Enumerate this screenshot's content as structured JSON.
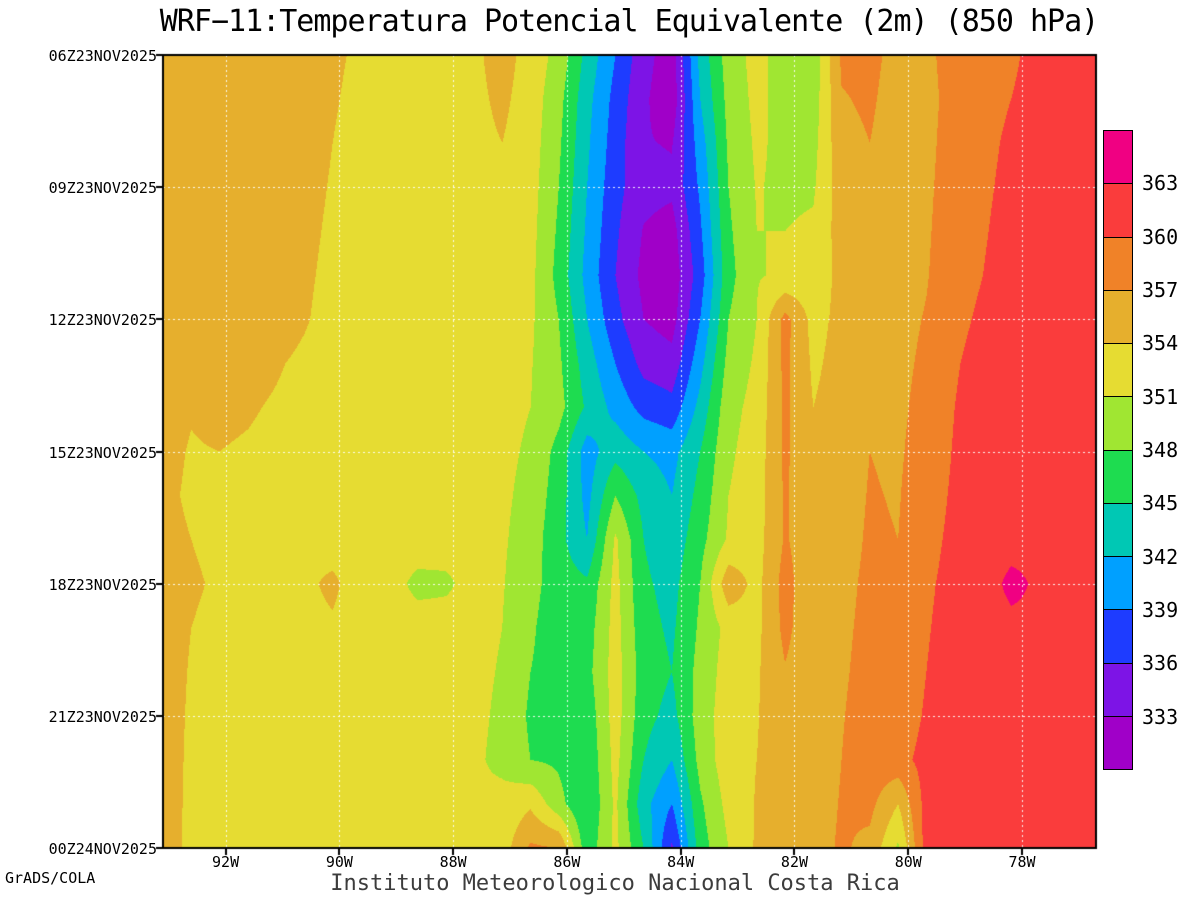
{
  "page": {
    "title": "WRF−11:Temperatura Potencial Equivalente (2m) (850 hPa)",
    "credit": "GrADS/COLA",
    "caption": "Instituto Meteorologico Nacional Costa Rica"
  },
  "chart_data": {
    "type": "heatmap",
    "title": "WRF−11:Temperatura Potencial Equivalente (2m) (850 hPa)",
    "x_axis": "longitude",
    "y_axis": "time",
    "legend_position": "right",
    "grid_lines": "dotted-white",
    "x_ticks": [
      {
        "label": "92W",
        "lon": -92
      },
      {
        "label": "90W",
        "lon": -90
      },
      {
        "label": "88W",
        "lon": -88
      },
      {
        "label": "86W",
        "lon": -86
      },
      {
        "label": "84W",
        "lon": -84
      },
      {
        "label": "82W",
        "lon": -82
      },
      {
        "label": "80W",
        "lon": -80
      },
      {
        "label": "78W",
        "lon": -78
      }
    ],
    "y_ticks": [
      {
        "label": "06Z23NOV2025",
        "t": 6
      },
      {
        "label": "09Z23NOV2025",
        "t": 9
      },
      {
        "label": "12Z23NOV2025",
        "t": 12
      },
      {
        "label": "15Z23NOV2025",
        "t": 15
      },
      {
        "label": "18Z23NOV2025",
        "t": 18
      },
      {
        "label": "21Z23NOV2025",
        "t": 21
      },
      {
        "label": "00Z24NOV2025",
        "t": 24
      }
    ],
    "levels": [
      333,
      336,
      339,
      342,
      345,
      348,
      351,
      354,
      357,
      360,
      363
    ],
    "colors": [
      "#a000c8",
      "#7d14e6",
      "#1e3cff",
      "#00a0ff",
      "#00c8b4",
      "#1edc50",
      "#a0e632",
      "#e6dc32",
      "#e6af2d",
      "#f08228",
      "#fa3c3c",
      "#f00082"
    ],
    "grid": {
      "lon_min": -93.1,
      "lon_max": -76.7,
      "nx": 34,
      "t_min": 6,
      "t_max": 24,
      "ny": 19,
      "values": [
        [
          355.5,
          356.0,
          356.2,
          356.0,
          355.8,
          355.2,
          354.4,
          353.6,
          353.2,
          353.4,
          353.2,
          353.4,
          355.2,
          352.8,
          350.0,
          344.0,
          339.0,
          334.0,
          331.5,
          343.0,
          349.5,
          352.0,
          349.5,
          349.0,
          357.5,
          357.8,
          356.0,
          356.2,
          358.5,
          359.0,
          359.5,
          361.0,
          361.5,
          361.8
        ],
        [
          355.5,
          356.0,
          356.3,
          356.1,
          355.8,
          355.1,
          354.2,
          353.4,
          353.0,
          353.3,
          353.0,
          353.3,
          354.6,
          352.6,
          349.0,
          343.0,
          338.0,
          333.5,
          331.0,
          342.0,
          349.0,
          351.8,
          349.8,
          349.4,
          356.8,
          357.4,
          355.8,
          356.0,
          358.2,
          359.2,
          360.0,
          361.2,
          361.6,
          361.9
        ],
        [
          355.4,
          355.9,
          356.2,
          356.0,
          355.6,
          355.0,
          354.0,
          353.2,
          352.9,
          353.2,
          352.9,
          353.2,
          354.0,
          352.4,
          348.5,
          342.5,
          337.5,
          333.2,
          332.8,
          340.5,
          348.5,
          351.5,
          350.2,
          350.0,
          356.2,
          357.0,
          355.6,
          356.2,
          358.4,
          359.4,
          360.4,
          361.4,
          361.8,
          362.0
        ],
        [
          355.3,
          355.8,
          356.1,
          356.0,
          355.5,
          354.8,
          353.8,
          353.0,
          352.8,
          353.0,
          352.8,
          353.0,
          353.6,
          352.2,
          348.0,
          342.0,
          337.0,
          334.0,
          333.6,
          339.5,
          348.0,
          351.2,
          350.4,
          350.6,
          355.8,
          356.6,
          355.4,
          356.4,
          358.6,
          359.6,
          360.6,
          361.6,
          362.0,
          362.2
        ],
        [
          355.2,
          355.7,
          356.0,
          355.9,
          355.4,
          354.6,
          353.6,
          352.9,
          352.7,
          352.9,
          352.7,
          352.9,
          353.2,
          352.0,
          347.5,
          341.5,
          336.5,
          332.8,
          331.8,
          338.5,
          347.5,
          351.0,
          351.0,
          351.5,
          355.4,
          356.2,
          355.4,
          356.6,
          358.8,
          359.8,
          360.8,
          361.8,
          362.1,
          362.3
        ],
        [
          355.0,
          355.5,
          355.8,
          355.7,
          355.2,
          354.4,
          353.4,
          352.8,
          352.6,
          352.8,
          352.6,
          352.8,
          353.0,
          351.8,
          347.0,
          341.0,
          336.0,
          332.2,
          331.2,
          337.5,
          347.0,
          350.8,
          351.4,
          352.0,
          355.0,
          356.0,
          355.6,
          356.8,
          359.0,
          360.0,
          361.0,
          361.9,
          362.2,
          362.4
        ],
        [
          354.8,
          355.3,
          355.6,
          355.5,
          355.0,
          354.2,
          353.2,
          352.7,
          352.5,
          352.7,
          352.5,
          352.7,
          352.8,
          351.5,
          348.0,
          342.0,
          337.0,
          333.0,
          331.8,
          339.0,
          348.0,
          351.0,
          358.0,
          353.0,
          354.8,
          356.4,
          356.0,
          357.2,
          359.4,
          360.4,
          361.2,
          362.0,
          362.3,
          362.5
        ],
        [
          354.8,
          354.6,
          354.9,
          354.7,
          354.2,
          353.6,
          353.0,
          352.6,
          352.4,
          352.6,
          352.4,
          352.5,
          352.4,
          351.2,
          348.5,
          343.5,
          339.0,
          335.0,
          334.0,
          341.0,
          349.0,
          351.5,
          357.8,
          353.5,
          355.0,
          356.6,
          356.2,
          357.6,
          359.8,
          360.8,
          361.4,
          362.1,
          362.4,
          362.6
        ],
        [
          354.6,
          354.1,
          354.4,
          354.2,
          353.8,
          353.3,
          352.9,
          352.5,
          352.3,
          352.5,
          352.3,
          352.3,
          352.0,
          351.0,
          349.0,
          344.5,
          341.0,
          338.0,
          337.0,
          343.0,
          350.0,
          352.0,
          357.6,
          354.0,
          355.2,
          356.8,
          356.4,
          358.0,
          360.0,
          361.0,
          361.6,
          362.2,
          362.5,
          362.7
        ],
        [
          354.4,
          353.9,
          354.0,
          353.8,
          353.5,
          353.1,
          352.8,
          352.4,
          352.2,
          352.4,
          352.2,
          352.1,
          351.8,
          350.5,
          347.0,
          340.5,
          344.0,
          342.0,
          341.0,
          345.0,
          350.5,
          352.4,
          357.5,
          354.4,
          355.4,
          357.0,
          356.6,
          358.4,
          360.2,
          361.2,
          361.8,
          362.3,
          362.6,
          362.8
        ],
        [
          354.3,
          353.8,
          353.6,
          353.6,
          353.4,
          353.0,
          352.7,
          352.3,
          352.1,
          352.3,
          352.1,
          352.0,
          351.6,
          350.0,
          346.5,
          341.0,
          348.0,
          344.0,
          342.0,
          346.0,
          351.0,
          352.6,
          357.4,
          354.8,
          355.6,
          357.2,
          356.8,
          358.8,
          360.4,
          361.4,
          362.0,
          362.4,
          362.7,
          362.8
        ],
        [
          354.4,
          354.0,
          353.6,
          353.7,
          353.6,
          353.2,
          352.6,
          352.2,
          352.0,
          352.2,
          352.0,
          351.9,
          351.4,
          349.5,
          346.0,
          342.0,
          351.5,
          345.0,
          343.0,
          347.0,
          351.4,
          352.8,
          357.3,
          355.2,
          355.8,
          357.4,
          357.0,
          359.2,
          360.6,
          361.6,
          362.1,
          362.5,
          362.8,
          362.8
        ],
        [
          354.6,
          354.2,
          353.8,
          353.9,
          353.8,
          353.4,
          354.6,
          352.4,
          352.0,
          350.4,
          350.6,
          351.8,
          351.2,
          349.0,
          346.5,
          345.5,
          352.0,
          345.5,
          344.0,
          348.0,
          356.0,
          353.0,
          358.2,
          354.5,
          356.2,
          357.6,
          357.2,
          359.6,
          360.8,
          361.8,
          363.6,
          362.6,
          362.8,
          362.8
        ],
        [
          354.6,
          354.0,
          353.6,
          353.7,
          353.6,
          353.2,
          353.6,
          352.3,
          351.9,
          352.0,
          352.0,
          351.7,
          351.0,
          348.5,
          346.0,
          346.5,
          352.2,
          346.0,
          344.5,
          348.5,
          352.0,
          353.2,
          357.8,
          354.8,
          356.4,
          357.8,
          357.4,
          359.8,
          361.0,
          362.0,
          362.4,
          362.7,
          362.8,
          362.8
        ],
        [
          354.6,
          353.9,
          353.4,
          353.5,
          353.4,
          353.0,
          352.8,
          352.2,
          351.8,
          351.9,
          351.9,
          351.6,
          350.8,
          348.0,
          346.5,
          347.0,
          352.4,
          346.5,
          345.0,
          349.0,
          352.4,
          353.6,
          356.8,
          355.0,
          356.6,
          358.0,
          357.6,
          360.0,
          361.2,
          362.1,
          362.5,
          362.8,
          362.8,
          362.8
        ],
        [
          354.7,
          353.8,
          353.3,
          353.4,
          353.3,
          352.9,
          352.6,
          352.1,
          351.7,
          351.8,
          351.8,
          351.5,
          350.6,
          347.5,
          347.0,
          346.0,
          352.4,
          346.0,
          344.0,
          349.5,
          352.6,
          353.8,
          356.2,
          355.2,
          356.8,
          358.4,
          358.0,
          360.4,
          361.4,
          362.2,
          362.6,
          362.8,
          362.8,
          362.8
        ],
        [
          354.8,
          353.7,
          353.2,
          353.3,
          353.2,
          352.8,
          352.5,
          352.0,
          351.6,
          351.7,
          351.7,
          351.4,
          350.4,
          348.0,
          347.5,
          345.5,
          352.0,
          345.0,
          342.0,
          349.0,
          352.8,
          354.0,
          355.8,
          355.4,
          357.0,
          358.8,
          359.0,
          361.0,
          361.6,
          362.3,
          362.7,
          362.8,
          362.8,
          362.8
        ],
        [
          354.9,
          353.6,
          353.1,
          353.2,
          353.1,
          352.7,
          352.4,
          351.9,
          351.5,
          351.6,
          351.6,
          351.3,
          351.8,
          353.5,
          349.0,
          345.0,
          351.6,
          343.0,
          339.0,
          347.5,
          352.0,
          354.2,
          355.6,
          355.6,
          357.2,
          357.8,
          354.0,
          361.2,
          361.8,
          362.4,
          362.8,
          362.8,
          362.8,
          362.8
        ],
        [
          355.0,
          353.5,
          353.0,
          353.1,
          353.0,
          352.6,
          352.3,
          351.8,
          351.4,
          351.5,
          351.5,
          351.2,
          352.5,
          357.5,
          357.0,
          346.0,
          351.8,
          345.0,
          335.5,
          346.5,
          351.0,
          354.4,
          355.6,
          355.8,
          357.4,
          356.2,
          350.5,
          361.4,
          362.0,
          362.5,
          362.8,
          362.8,
          362.8,
          362.8
        ]
      ]
    }
  }
}
